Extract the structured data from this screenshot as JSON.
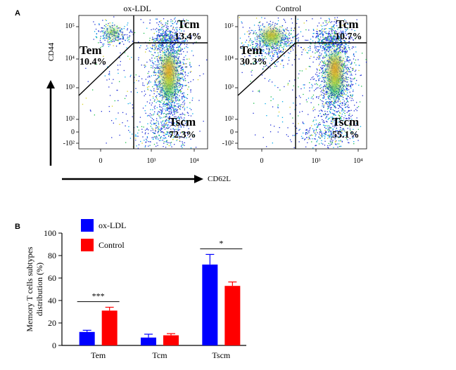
{
  "panel_a": {
    "label": "A",
    "x_marker": "CD62L",
    "y_marker": "CD44",
    "y_ticks": [
      "10⁵",
      "10⁴",
      "10³",
      "10²",
      "0",
      "-10²"
    ],
    "x_ticks": [
      "0",
      "10³",
      "10⁴"
    ],
    "plots": [
      {
        "title": "ox-LDL",
        "tem_label": "Tem",
        "tem_pct": "10.4%",
        "tcm_label": "Tcm",
        "tcm_pct": "13.4%",
        "tscm_label": "Tscm",
        "tscm_pct": "72.3%"
      },
      {
        "title": "Control",
        "tem_label": "Tem",
        "tem_pct": "30.3%",
        "tcm_label": "Tcm",
        "tcm_pct": "10.7%",
        "tscm_label": "Tscm",
        "tscm_pct": "55.1%"
      }
    ]
  },
  "chart_data": {
    "panel_label": "B",
    "type": "bar",
    "categories": [
      "Tem",
      "Tcm",
      "Tscm"
    ],
    "series": [
      {
        "name": "ox-LDL",
        "color": "#0000ff",
        "values": [
          12,
          7,
          72
        ],
        "errors": [
          1.5,
          3,
          9
        ]
      },
      {
        "name": "Control",
        "color": "#ff0000",
        "values": [
          31,
          9,
          53
        ],
        "errors": [
          3,
          1.5,
          3.5
        ]
      }
    ],
    "ylabel": "Memory T cells subtypes distribution (%)",
    "ylabel_lines": [
      "Memory T cells subtypes",
      "distribution (%)"
    ],
    "ylim": [
      0,
      100
    ],
    "yticks": [
      0,
      20,
      40,
      60,
      80,
      100
    ],
    "legend_position": "top-left",
    "significance": [
      {
        "category": "Tem",
        "label": "***"
      },
      {
        "category": "Tscm",
        "label": "*"
      }
    ]
  }
}
